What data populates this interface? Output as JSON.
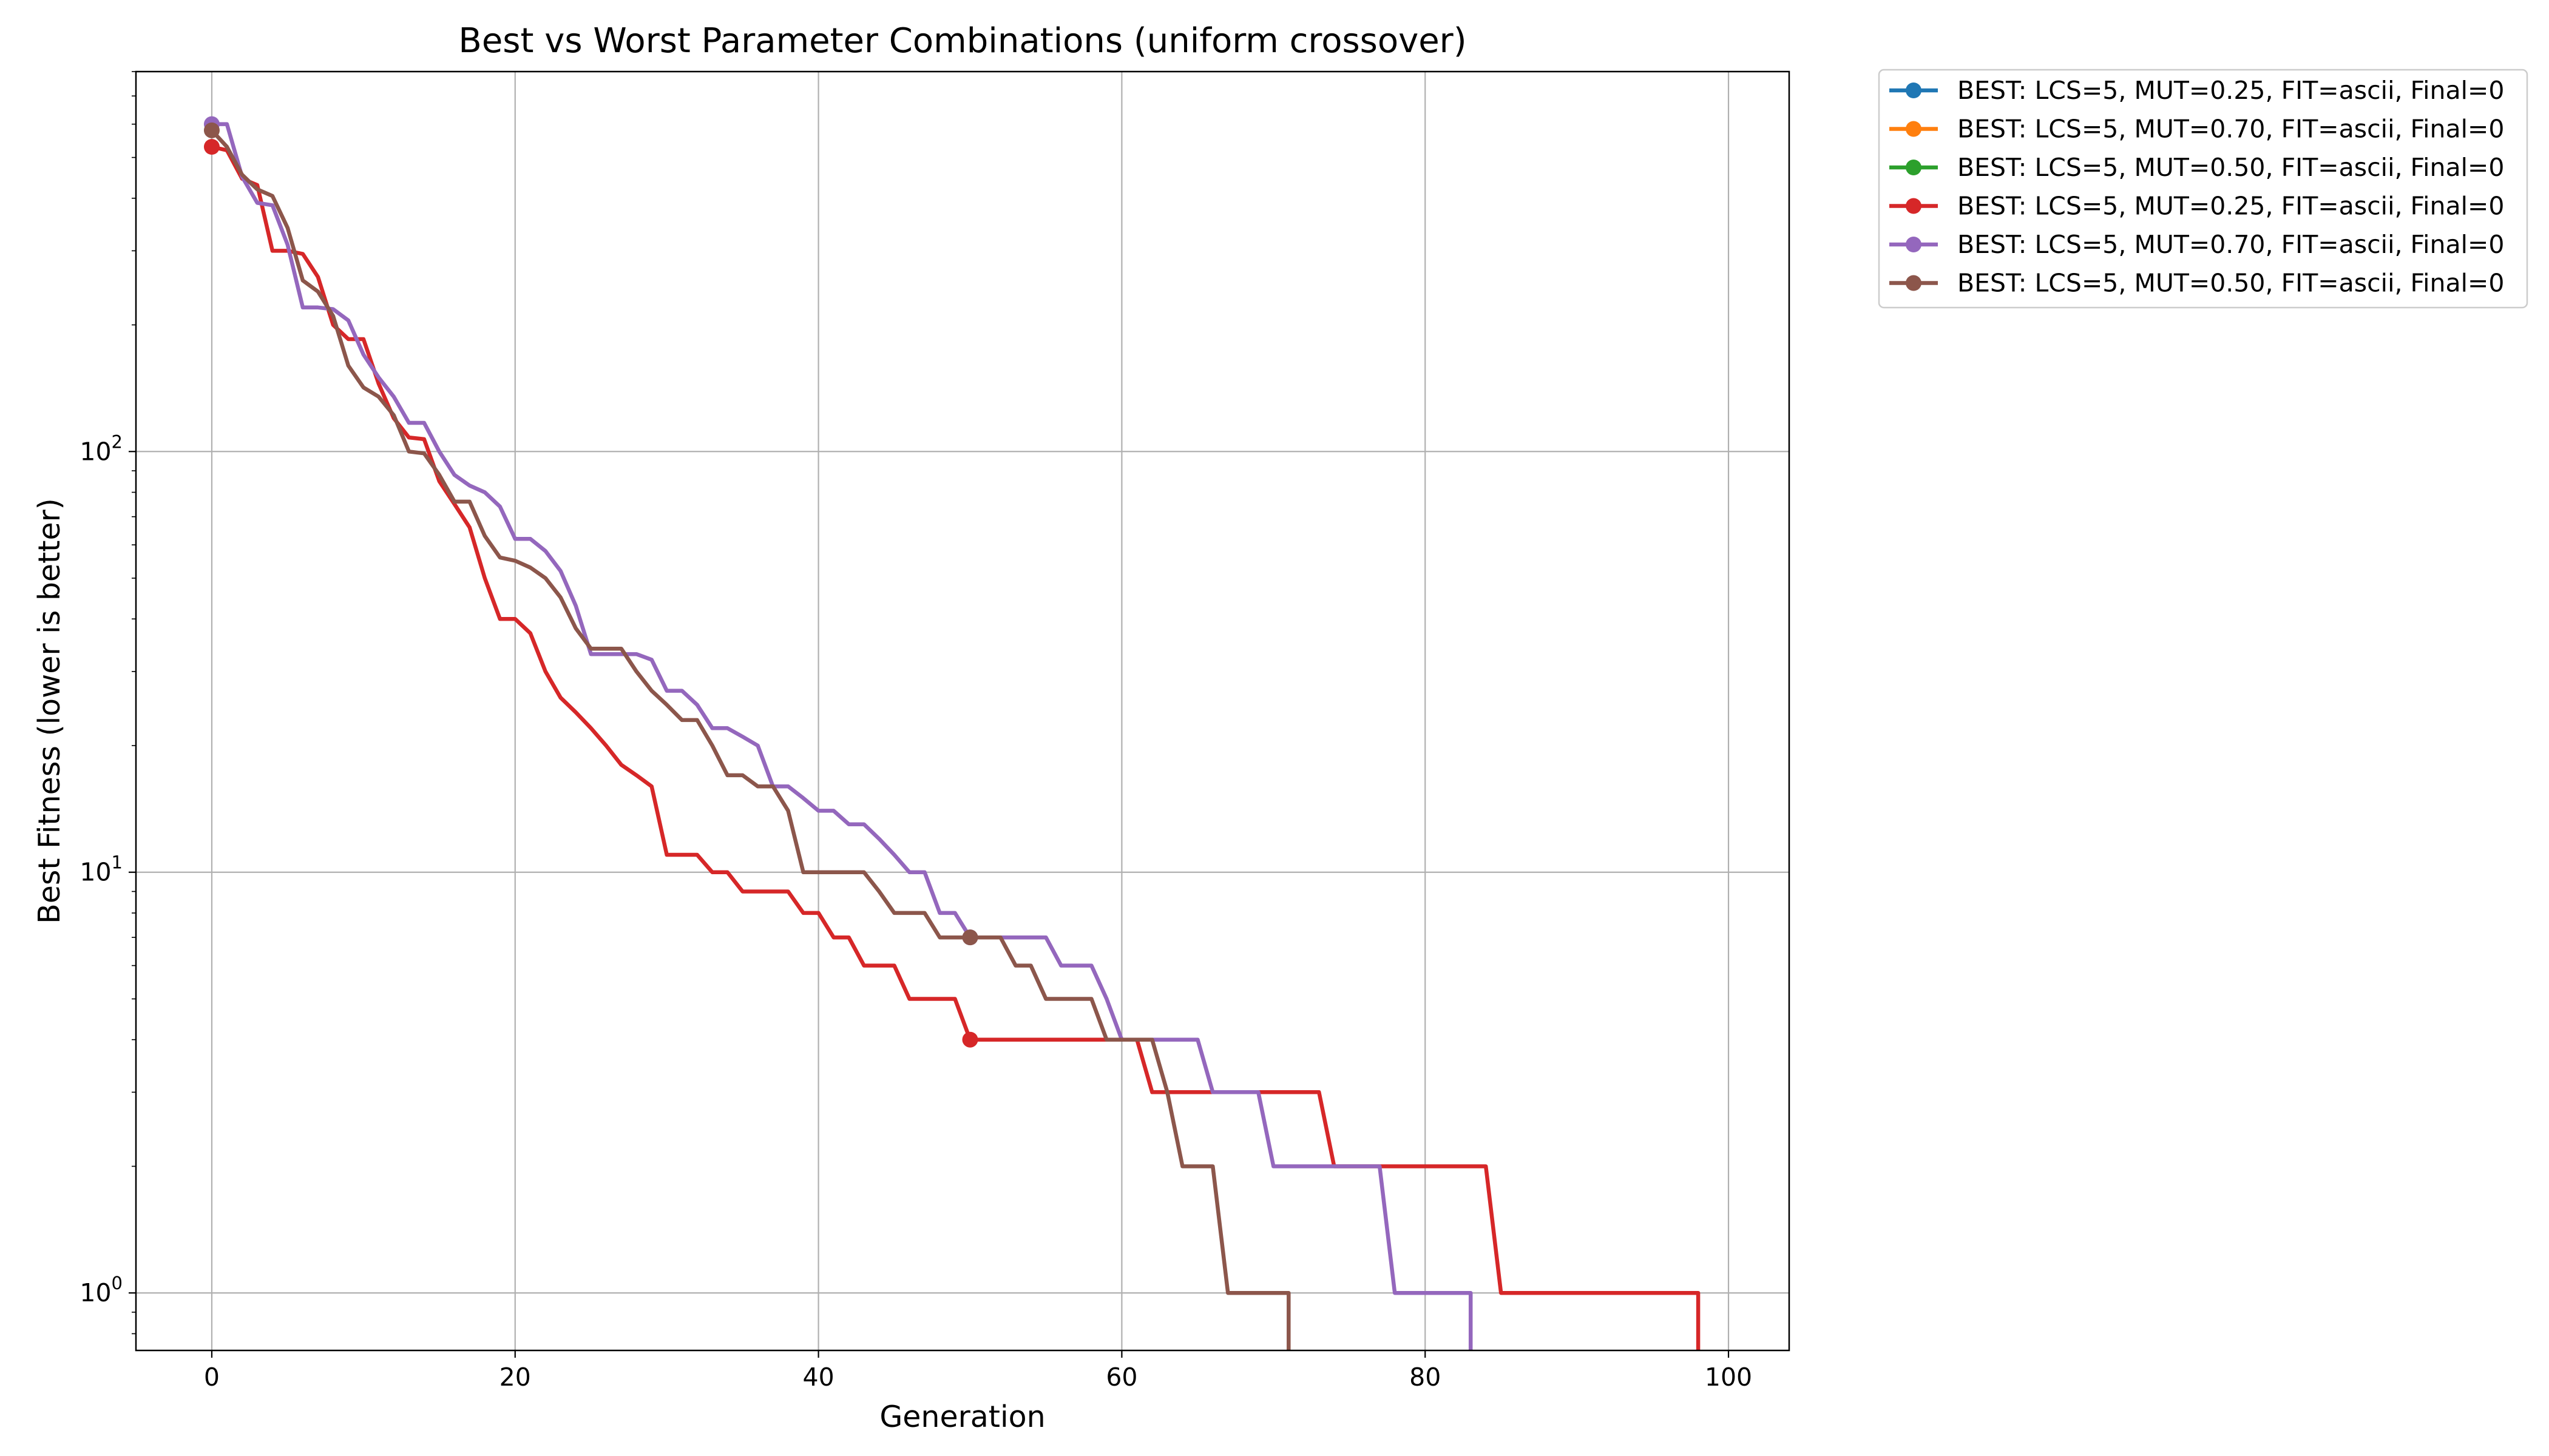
{
  "chart_data": {
    "type": "line",
    "title": "Best vs Worst Parameter Combinations (uniform crossover)",
    "xlabel": "Generation",
    "ylabel": "Best Fitness (lower is better)",
    "xlim": [
      -5,
      104
    ],
    "ylim": [
      0.73,
      800
    ],
    "yscale": "log",
    "grid": true,
    "legend_position": "outside-right-top",
    "x_ticks": [
      0,
      20,
      40,
      60,
      80,
      100
    ],
    "y_ticks": [
      {
        "value": 1,
        "base": "10",
        "exp": "0"
      },
      {
        "value": 10,
        "base": "10",
        "exp": "1"
      },
      {
        "value": 100,
        "base": "10",
        "exp": "2"
      }
    ],
    "series": [
      {
        "name": "BEST: LCS=5, MUT=0.25, FIT=ascii, Final=0",
        "color": "#1f77b4",
        "markers": [],
        "points": []
      },
      {
        "name": "BEST: LCS=5, MUT=0.70, FIT=ascii, Final=0",
        "color": "#ff7f0e",
        "markers": [],
        "points": []
      },
      {
        "name": "BEST: LCS=5, MUT=0.50, FIT=ascii, Final=0",
        "color": "#2ca02c",
        "markers": [],
        "points": []
      },
      {
        "name": "BEST: LCS=5, MUT=0.25, FIT=ascii, Final=0",
        "color": "#d62728",
        "markers": [
          [
            0,
            530
          ],
          [
            50,
            4
          ]
        ],
        "points": [
          [
            0,
            530
          ],
          [
            1,
            520
          ],
          [
            2,
            445
          ],
          [
            3,
            430
          ],
          [
            4,
            300
          ],
          [
            5,
            300
          ],
          [
            6,
            295
          ],
          [
            7,
            260
          ],
          [
            8,
            200
          ],
          [
            9,
            185
          ],
          [
            10,
            185
          ],
          [
            11,
            145
          ],
          [
            12,
            120
          ],
          [
            13,
            108
          ],
          [
            14,
            107
          ],
          [
            15,
            85
          ],
          [
            16,
            75
          ],
          [
            17,
            66
          ],
          [
            18,
            50
          ],
          [
            19,
            40
          ],
          [
            20,
            40
          ],
          [
            21,
            37
          ],
          [
            22,
            30
          ],
          [
            23,
            26
          ],
          [
            24,
            24
          ],
          [
            25,
            22
          ],
          [
            26,
            20
          ],
          [
            27,
            18
          ],
          [
            28,
            17
          ],
          [
            29,
            16
          ],
          [
            30,
            11
          ],
          [
            31,
            11
          ],
          [
            32,
            11
          ],
          [
            33,
            10
          ],
          [
            34,
            10
          ],
          [
            35,
            9
          ],
          [
            36,
            9
          ],
          [
            37,
            9
          ],
          [
            38,
            9
          ],
          [
            39,
            8
          ],
          [
            40,
            8
          ],
          [
            41,
            7
          ],
          [
            42,
            7
          ],
          [
            43,
            6
          ],
          [
            44,
            6
          ],
          [
            45,
            6
          ],
          [
            46,
            5
          ],
          [
            47,
            5
          ],
          [
            48,
            5
          ],
          [
            49,
            5
          ],
          [
            50,
            4
          ],
          [
            51,
            4
          ],
          [
            52,
            4
          ],
          [
            53,
            4
          ],
          [
            54,
            4
          ],
          [
            55,
            4
          ],
          [
            56,
            4
          ],
          [
            57,
            4
          ],
          [
            58,
            4
          ],
          [
            59,
            4
          ],
          [
            60,
            4
          ],
          [
            61,
            4
          ],
          [
            62,
            3
          ],
          [
            63,
            3
          ],
          [
            64,
            3
          ],
          [
            65,
            3
          ],
          [
            66,
            3
          ],
          [
            67,
            3
          ],
          [
            68,
            3
          ],
          [
            69,
            3
          ],
          [
            70,
            3
          ],
          [
            71,
            3
          ],
          [
            72,
            3
          ],
          [
            73,
            3
          ],
          [
            74,
            2
          ],
          [
            75,
            2
          ],
          [
            76,
            2
          ],
          [
            77,
            2
          ],
          [
            78,
            2
          ],
          [
            79,
            2
          ],
          [
            80,
            2
          ],
          [
            81,
            2
          ],
          [
            82,
            2
          ],
          [
            83,
            2
          ],
          [
            84,
            2
          ],
          [
            85,
            1
          ],
          [
            86,
            1
          ],
          [
            87,
            1
          ],
          [
            88,
            1
          ],
          [
            89,
            1
          ],
          [
            90,
            1
          ],
          [
            91,
            1
          ],
          [
            92,
            1
          ],
          [
            93,
            1
          ],
          [
            94,
            1
          ],
          [
            95,
            1
          ],
          [
            96,
            1
          ],
          [
            97,
            1
          ],
          [
            98,
            1
          ],
          [
            98,
            0.5
          ]
        ]
      },
      {
        "name": "BEST: LCS=5, MUT=0.70, FIT=ascii, Final=0",
        "color": "#9467bd",
        "markers": [
          [
            0,
            600
          ],
          [
            50,
            7
          ]
        ],
        "points": [
          [
            0,
            600
          ],
          [
            1,
            600
          ],
          [
            2,
            450
          ],
          [
            3,
            390
          ],
          [
            4,
            385
          ],
          [
            5,
            310
          ],
          [
            6,
            220
          ],
          [
            7,
            220
          ],
          [
            8,
            218
          ],
          [
            9,
            205
          ],
          [
            10,
            170
          ],
          [
            11,
            150
          ],
          [
            12,
            135
          ],
          [
            13,
            117
          ],
          [
            14,
            117
          ],
          [
            15,
            100
          ],
          [
            16,
            88
          ],
          [
            17,
            83
          ],
          [
            18,
            80
          ],
          [
            19,
            74
          ],
          [
            20,
            62
          ],
          [
            21,
            62
          ],
          [
            22,
            58
          ],
          [
            23,
            52
          ],
          [
            24,
            43
          ],
          [
            25,
            33
          ],
          [
            26,
            33
          ],
          [
            27,
            33
          ],
          [
            28,
            33
          ],
          [
            29,
            32
          ],
          [
            30,
            27
          ],
          [
            31,
            27
          ],
          [
            32,
            25
          ],
          [
            33,
            22
          ],
          [
            34,
            22
          ],
          [
            35,
            21
          ],
          [
            36,
            20
          ],
          [
            37,
            16
          ],
          [
            38,
            16
          ],
          [
            39,
            15
          ],
          [
            40,
            14
          ],
          [
            41,
            14
          ],
          [
            42,
            13
          ],
          [
            43,
            13
          ],
          [
            44,
            12
          ],
          [
            45,
            11
          ],
          [
            46,
            10
          ],
          [
            47,
            10
          ],
          [
            48,
            8
          ],
          [
            49,
            8
          ],
          [
            50,
            7
          ],
          [
            51,
            7
          ],
          [
            52,
            7
          ],
          [
            53,
            7
          ],
          [
            54,
            7
          ],
          [
            55,
            7
          ],
          [
            56,
            6
          ],
          [
            57,
            6
          ],
          [
            58,
            6
          ],
          [
            59,
            5
          ],
          [
            60,
            4
          ],
          [
            61,
            4
          ],
          [
            62,
            4
          ],
          [
            63,
            4
          ],
          [
            64,
            4
          ],
          [
            65,
            4
          ],
          [
            66,
            3
          ],
          [
            67,
            3
          ],
          [
            68,
            3
          ],
          [
            69,
            3
          ],
          [
            70,
            2
          ],
          [
            71,
            2
          ],
          [
            72,
            2
          ],
          [
            73,
            2
          ],
          [
            74,
            2
          ],
          [
            75,
            2
          ],
          [
            76,
            2
          ],
          [
            77,
            2
          ],
          [
            78,
            1
          ],
          [
            79,
            1
          ],
          [
            80,
            1
          ],
          [
            81,
            1
          ],
          [
            82,
            1
          ],
          [
            83,
            1
          ],
          [
            83,
            0.5
          ]
        ]
      },
      {
        "name": "BEST: LCS=5, MUT=0.50, FIT=ascii, Final=0",
        "color": "#8c564b",
        "markers": [
          [
            0,
            580
          ],
          [
            50,
            7
          ]
        ],
        "points": [
          [
            0,
            580
          ],
          [
            1,
            530
          ],
          [
            2,
            455
          ],
          [
            3,
            420
          ],
          [
            4,
            405
          ],
          [
            5,
            340
          ],
          [
            6,
            255
          ],
          [
            7,
            240
          ],
          [
            8,
            210
          ],
          [
            9,
            160
          ],
          [
            10,
            142
          ],
          [
            11,
            135
          ],
          [
            12,
            122
          ],
          [
            13,
            100
          ],
          [
            14,
            99
          ],
          [
            15,
            88
          ],
          [
            16,
            76
          ],
          [
            17,
            76
          ],
          [
            18,
            63
          ],
          [
            19,
            56
          ],
          [
            20,
            55
          ],
          [
            21,
            53
          ],
          [
            22,
            50
          ],
          [
            23,
            45
          ],
          [
            24,
            38
          ],
          [
            25,
            34
          ],
          [
            26,
            34
          ],
          [
            27,
            34
          ],
          [
            28,
            30
          ],
          [
            29,
            27
          ],
          [
            30,
            25
          ],
          [
            31,
            23
          ],
          [
            32,
            23
          ],
          [
            33,
            20
          ],
          [
            34,
            17
          ],
          [
            35,
            17
          ],
          [
            36,
            16
          ],
          [
            37,
            16
          ],
          [
            38,
            14
          ],
          [
            39,
            10
          ],
          [
            40,
            10
          ],
          [
            41,
            10
          ],
          [
            42,
            10
          ],
          [
            43,
            10
          ],
          [
            44,
            9
          ],
          [
            45,
            8
          ],
          [
            46,
            8
          ],
          [
            47,
            8
          ],
          [
            48,
            7
          ],
          [
            49,
            7
          ],
          [
            50,
            7
          ],
          [
            51,
            7
          ],
          [
            52,
            7
          ],
          [
            53,
            6
          ],
          [
            54,
            6
          ],
          [
            55,
            5
          ],
          [
            56,
            5
          ],
          [
            57,
            5
          ],
          [
            58,
            5
          ],
          [
            59,
            4
          ],
          [
            60,
            4
          ],
          [
            61,
            4
          ],
          [
            62,
            4
          ],
          [
            63,
            3
          ],
          [
            64,
            2
          ],
          [
            65,
            2
          ],
          [
            66,
            2
          ],
          [
            67,
            1
          ],
          [
            68,
            1
          ],
          [
            69,
            1
          ],
          [
            70,
            1
          ],
          [
            71,
            1
          ],
          [
            71,
            0.5
          ]
        ]
      }
    ]
  }
}
